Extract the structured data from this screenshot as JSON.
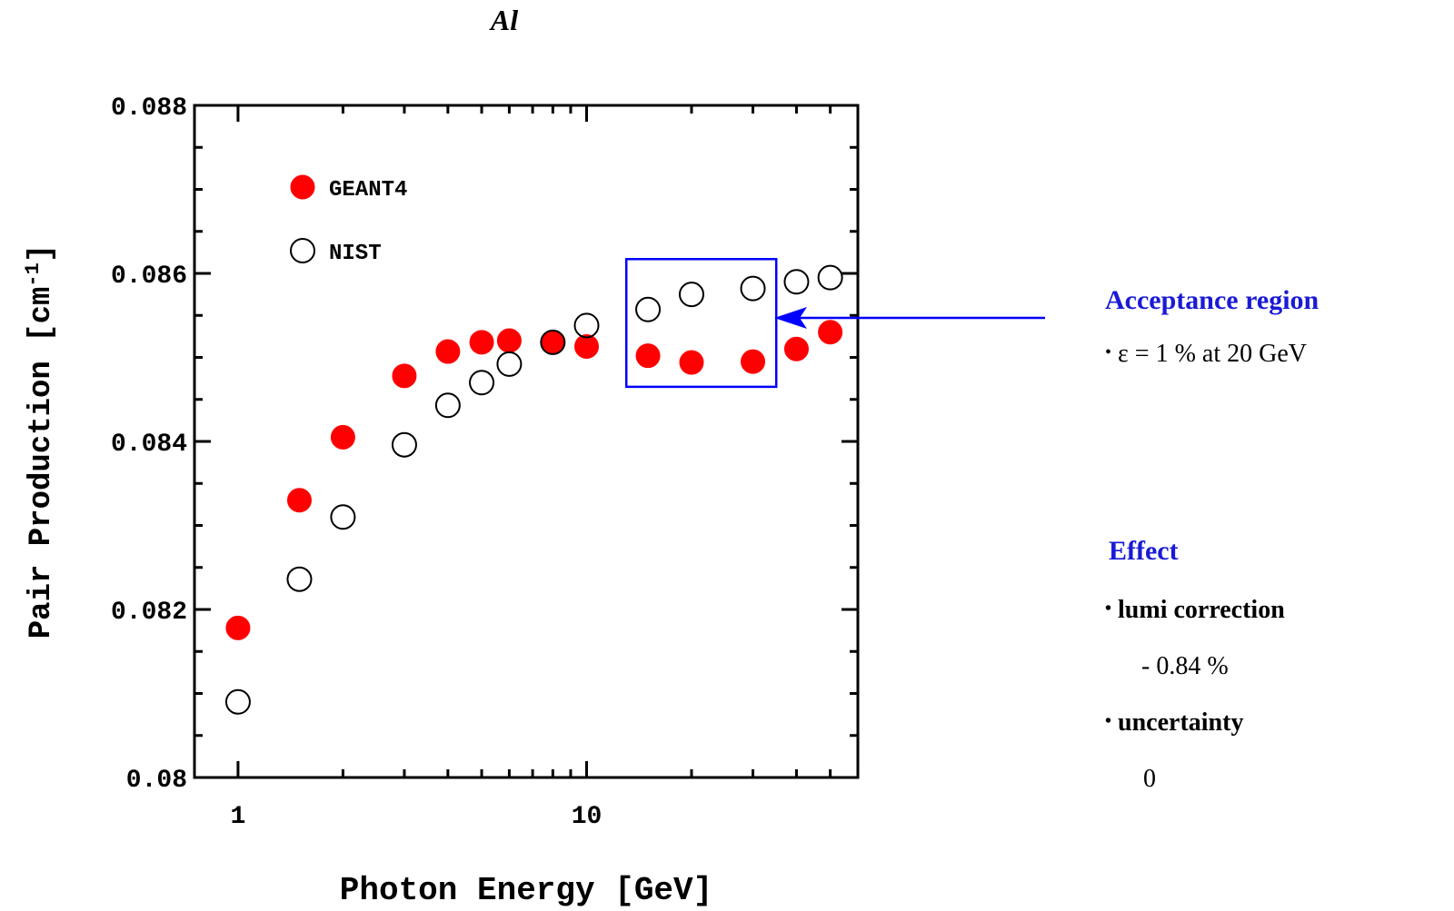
{
  "title": "Al",
  "chart_data": {
    "type": "scatter",
    "xscale": "log",
    "xlim": [
      0.75,
      60
    ],
    "ylim": [
      0.08,
      0.088
    ],
    "xlabel": "Photon Energy [GeV]",
    "ylabel": "Pair Production [cm",
    "ylabel_exp": "-1",
    "ylabel_close": "]",
    "xticks": [
      1,
      10
    ],
    "xtick_labels": [
      "1",
      "10"
    ],
    "yticks": [
      0.08,
      0.082,
      0.084,
      0.086,
      0.088
    ],
    "ytick_labels": [
      "0.08",
      "0.082",
      "0.084",
      "0.086",
      "0.088"
    ],
    "legend_position": "top-left",
    "series": [
      {
        "name": "GEANT4",
        "marker": "filled-circle",
        "color": "#ff0000",
        "x": [
          1,
          1.5,
          2,
          3,
          4,
          5,
          6,
          8,
          10,
          15,
          20,
          30,
          40,
          50
        ],
        "y": [
          0.08178,
          0.0833,
          0.08405,
          0.08478,
          0.08507,
          0.08518,
          0.0852,
          0.08518,
          0.08513,
          0.08502,
          0.08494,
          0.08495,
          0.0851,
          0.0853
        ]
      },
      {
        "name": "NIST",
        "marker": "open-circle",
        "color": "#000000",
        "x": [
          1,
          1.5,
          2,
          3,
          4,
          5,
          6,
          8,
          10,
          15,
          20,
          30,
          40,
          50
        ],
        "y": [
          0.0809,
          0.08236,
          0.0831,
          0.08396,
          0.08443,
          0.0847,
          0.08492,
          0.08518,
          0.08538,
          0.08557,
          0.08575,
          0.08582,
          0.0859,
          0.08595
        ]
      }
    ],
    "annotation": {
      "box_xrange": [
        13,
        35
      ],
      "box_yrange": [
        0.08465,
        0.08617
      ],
      "box_color": "#0000ff",
      "arrow_color": "#0000ff"
    }
  },
  "acceptance": {
    "heading": "Acceptance region",
    "bullet": "•",
    "item": "ε = 1 % at 20 GeV"
  },
  "effect": {
    "heading": "Effect",
    "bullet": "•",
    "item1": "lumi correction",
    "item1_value": "- 0.84 %",
    "item2": "uncertainty",
    "item2_value": "0"
  }
}
